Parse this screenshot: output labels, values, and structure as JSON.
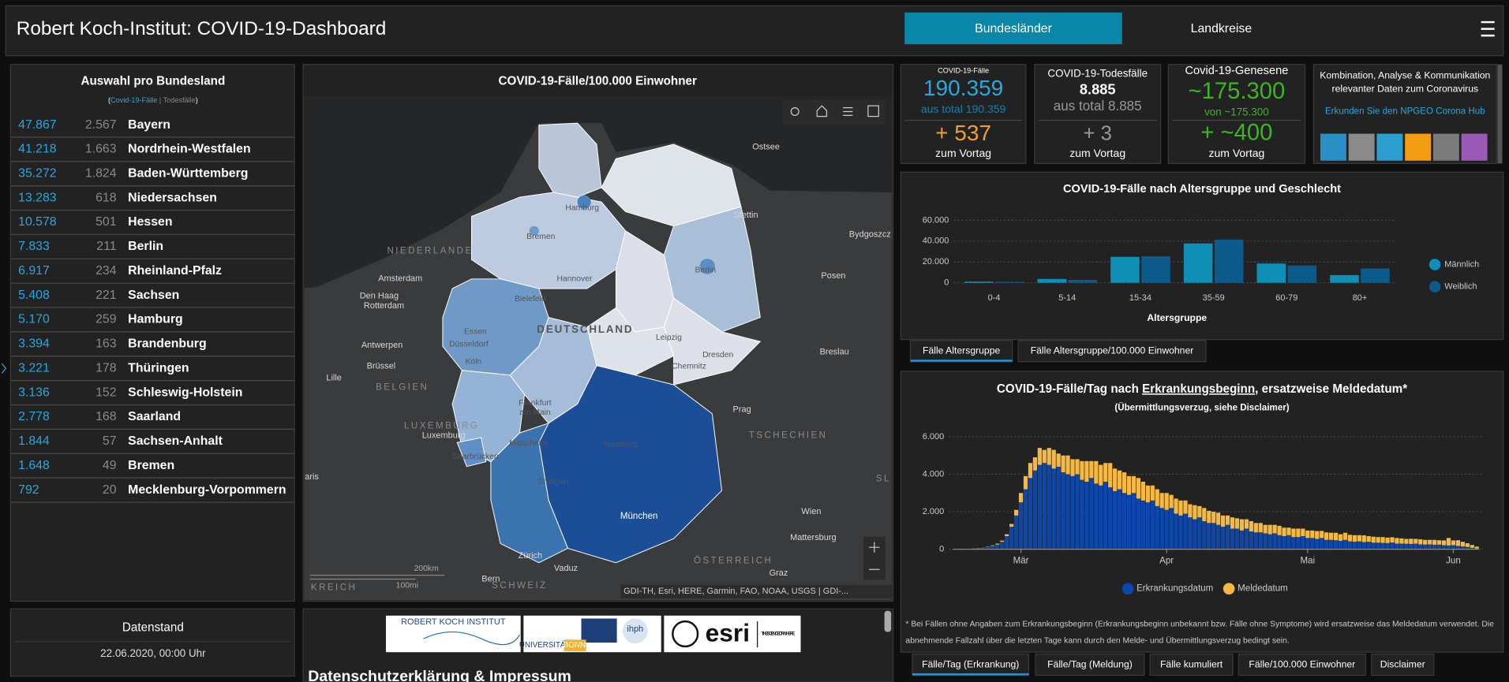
{
  "header": {
    "title": "Robert Koch-Institut: COVID-19-Dashboard",
    "tabs": [
      "Bundesländer",
      "Landkreise"
    ]
  },
  "state_list": {
    "title": "Auswahl pro Bundesland",
    "legend": [
      "(",
      "Covid-19-Fälle",
      "|",
      "Todesfälle",
      ")"
    ],
    "rows": [
      [
        "47.867",
        "2.567",
        "Bayern"
      ],
      [
        "41.218",
        "1.663",
        "Nordrhein-Westfalen"
      ],
      [
        "35.272",
        "1.824",
        "Baden-Württemberg"
      ],
      [
        "13.283",
        "618",
        "Niedersachsen"
      ],
      [
        "10.578",
        "501",
        "Hessen"
      ],
      [
        "7.833",
        "211",
        "Berlin"
      ],
      [
        "6.917",
        "234",
        "Rheinland-Pfalz"
      ],
      [
        "5.408",
        "221",
        "Sachsen"
      ],
      [
        "5.170",
        "259",
        "Hamburg"
      ],
      [
        "3.394",
        "163",
        "Brandenburg"
      ],
      [
        "3.221",
        "178",
        "Thüringen"
      ],
      [
        "3.136",
        "152",
        "Schleswig-Holstein"
      ],
      [
        "2.778",
        "168",
        "Saarland"
      ],
      [
        "1.844",
        "57",
        "Sachsen-Anhalt"
      ],
      [
        "1.648",
        "49",
        "Bremen"
      ],
      [
        "792",
        "20",
        "Mecklenburg-Vorpommern"
      ]
    ]
  },
  "data_status": {
    "title": "Datenstand",
    "value": "22.06.2020, 00:00 Uhr"
  },
  "map": {
    "title": "COVID-19-Fälle/100.000 Einwohner",
    "labels": [
      "Ostsee",
      "Hamburg",
      "Stettin",
      "Bydgoszcz",
      "Bremen",
      "NIEDERLANDE",
      "Amsterdam",
      "Hannover",
      "Berlin",
      "Posen",
      "Den Haag",
      "Rotterdam",
      "Bielefeld",
      "DEUTSCHLAND",
      "Essen",
      "Düsseldorf",
      "Leipzig",
      "Antwerpen",
      "Köln",
      "Dresden",
      "Brüssel",
      "Chemnitz",
      "Breslau",
      "Lille",
      "BELGIEN",
      "Frankfurt",
      "am Main",
      "Prag",
      "LUXEMBURG",
      "Luxemburg",
      "Mannheim",
      "Nürnberg",
      "TSCHECHIEN",
      "Saarbrücken",
      "aris",
      "Stuttgart",
      "SL",
      "Wien",
      "München",
      "Mattersburg",
      "ÖSTERREICH",
      "Zürich",
      "Vaduz",
      "Graz",
      "Bern",
      "SCHWEIZ",
      "KREICH"
    ],
    "scale": [
      "200km",
      "100mi"
    ],
    "attribution": "GDI-TH, Esri, HERE, Garmin, FAO, NOAA, USGS | GDI-..."
  },
  "footer": {
    "logos": [
      "ROBERT KOCH INSTITUT",
      "UNIVERSITÄT",
      "BONN",
      "ihph",
      "esri",
      "THE SCIENCE OF WHERE"
    ],
    "heading": "Datenschutzerklärung & Impressum"
  },
  "kpis": [
    {
      "title": "COVID-19-Fälle",
      "value": "190.359",
      "total": "aus total 190.359",
      "delta": "+ 537",
      "delta_label": "zum Vortag"
    },
    {
      "title": "COVID-19-Todesfälle",
      "value": "8.885",
      "total": "aus total 8.885",
      "delta": "+ 3",
      "delta_label": "zum Vortag"
    },
    {
      "title": "Covid-19-Genesene",
      "value": "~175.300",
      "total": "von ~175.300",
      "delta": "+ ~400",
      "delta_label": "zum Vortag"
    }
  ],
  "info": {
    "lines": [
      "Kombination, Analyse & Kommunikation",
      "relevanter Daten zum Coronavirus"
    ],
    "link": "Erkunden Sie den NPGEO Corona Hub"
  },
  "age_chart": {
    "type": "bar",
    "title": "COVID-19-Fälle nach Altersgruppe und Geschlecht",
    "categories": [
      "0-4",
      "5-14",
      "15-34",
      "35-59",
      "60-79",
      "80+"
    ],
    "series": [
      {
        "name": "Männlich",
        "color": "#0e8fb8",
        "values": [
          1200,
          3700,
          24900,
          37800,
          18500,
          7400
        ]
      },
      {
        "name": "Weiblich",
        "color": "#0b5a8a",
        "values": [
          1000,
          2800,
          25500,
          41500,
          16600,
          13800
        ]
      }
    ],
    "ylim": [
      0,
      60000
    ],
    "yticks": [
      0,
      {
        "value": 20000,
        "label": "20.000"
      },
      {
        "value": 40000,
        "label": "40.000"
      },
      {
        "value": 60000,
        "label": "60.000"
      }
    ],
    "grid": true,
    "xlabel": "Altersgruppe",
    "legend": "right",
    "tabs": [
      "Fälle Altersgruppe",
      "Fälle Altersgruppe/100.000 Einwohner"
    ]
  },
  "daily_chart": {
    "type": "stacked_bar",
    "title": [
      "COVID-19-Fälle/Tag nach ",
      "Erkrankungsbeginn",
      ", ersatzweise Meldedatum*"
    ],
    "subtitle": "(Übermittlungsverzug, siehe Disclaimer)",
    "categories": [
      null,
      null,
      null,
      null,
      null,
      null,
      null,
      null,
      null,
      null,
      null,
      null,
      null,
      null,
      "Mär",
      null,
      null,
      null,
      null,
      null,
      null,
      null,
      null,
      null,
      null,
      null,
      null,
      null,
      null,
      null,
      null,
      null,
      null,
      null,
      null,
      null,
      null,
      null,
      null,
      null,
      null,
      null,
      null,
      null,
      null,
      "Apr",
      null,
      null,
      null,
      null,
      null,
      null,
      null,
      null,
      null,
      null,
      null,
      null,
      null,
      null,
      null,
      null,
      null,
      null,
      null,
      null,
      null,
      null,
      null,
      null,
      null,
      null,
      null,
      null,
      null,
      "Mai",
      null,
      null,
      null,
      null,
      null,
      null,
      null,
      null,
      null,
      null,
      null,
      null,
      null,
      null,
      null,
      null,
      null,
      null,
      null,
      null,
      null,
      null,
      null,
      null,
      null,
      null,
      null,
      null,
      null,
      null,
      "Jun",
      null,
      null,
      null,
      null,
      null
    ],
    "series": [
      {
        "name": "Erkrankungsdatum",
        "color": "#0b47ad",
        "values": [
          10,
          15,
          20,
          30,
          40,
          60,
          80,
          120,
          180,
          250,
          400,
          700,
          1200,
          1800,
          2500,
          3200,
          3800,
          4200,
          4500,
          4600,
          4500,
          4300,
          4400,
          4100,
          4000,
          3900,
          4000,
          3700,
          3600,
          3800,
          3500,
          3400,
          3600,
          3300,
          3100,
          3200,
          3000,
          2900,
          3000,
          2700,
          2600,
          2500,
          2600,
          2300,
          2200,
          2100,
          2200,
          1900,
          1800,
          1900,
          1700,
          1600,
          1700,
          1500,
          1400,
          1400,
          1300,
          1200,
          1300,
          1100,
          1100,
          1000,
          1100,
          950,
          900,
          900,
          850,
          800,
          850,
          750,
          700,
          750,
          650,
          650,
          700,
          600,
          600,
          550,
          600,
          500,
          500,
          480,
          450,
          500,
          420,
          400,
          420,
          380,
          400,
          350,
          350,
          340,
          330,
          360,
          300,
          300,
          290,
          280,
          300,
          260,
          250,
          260,
          240,
          250,
          220,
          200,
          220,
          180,
          150,
          120,
          80,
          40
        ]
      },
      {
        "name": "Meldedatum",
        "color": "#f5b942",
        "values": [
          0,
          0,
          0,
          0,
          5,
          10,
          10,
          20,
          30,
          50,
          60,
          100,
          150,
          300,
          500,
          700,
          800,
          700,
          900,
          700,
          900,
          1000,
          700,
          900,
          1000,
          900,
          800,
          1000,
          1100,
          900,
          1200,
          1100,
          1000,
          1300,
          1200,
          1000,
          1100,
          1000,
          900,
          1100,
          1000,
          900,
          800,
          900,
          800,
          900,
          700,
          800,
          800,
          700,
          700,
          750,
          600,
          700,
          650,
          600,
          650,
          600,
          500,
          600,
          550,
          600,
          500,
          550,
          500,
          500,
          450,
          500,
          450,
          500,
          450,
          400,
          450,
          450,
          400,
          400,
          400,
          420,
          380,
          400,
          380,
          400,
          350,
          380,
          350,
          350,
          330,
          360,
          300,
          320,
          300,
          310,
          290,
          280,
          300,
          280,
          260,
          280,
          250,
          270,
          250,
          240,
          260,
          230,
          250,
          400,
          250,
          300,
          250,
          200,
          150,
          100
        ]
      }
    ],
    "ylim": [
      0,
      6000
    ],
    "yticks": [
      0,
      {
        "value": 2000,
        "label": "2.000"
      },
      {
        "value": 4000,
        "label": "4.000"
      },
      {
        "value": 6000,
        "label": "6.000"
      }
    ],
    "grid": true,
    "legend": "bottom",
    "footnote": [
      "* Bei Fällen ohne Angaben zum Erkrankungsbeginn (Erkrankungsbeginn unbekannt bzw. Fälle ohne Symptome) wird ersatzweise das Meldedatum verwendet. Die",
      "abnehmende Fallzahl über die letzten Tage kann durch den Melde- und Übermittlungsverzug bedingt sein."
    ],
    "tabs": [
      "Fälle/Tag (Erkrankung)",
      "Fälle/Tag (Meldung)",
      "Fälle kumuliert",
      "Fälle/100.000 Einwohner",
      "Disclaimer"
    ]
  }
}
